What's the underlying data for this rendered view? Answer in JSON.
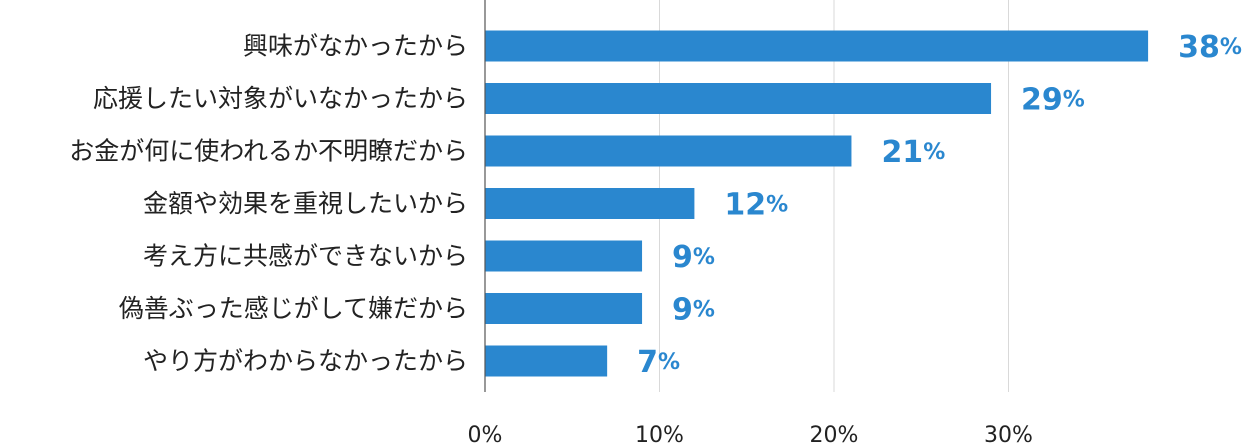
{
  "chart_data": {
    "type": "bar",
    "orientation": "horizontal",
    "categories": [
      "興味がなかったから",
      "応援したい対象がいなかったから",
      "お金が何に使われるか不明瞭だから",
      "金額や効果を重視したいから",
      "考え方に共感ができないから",
      "偽善ぶった感じがして嫌だから",
      "やり方がわからなかったから"
    ],
    "values": [
      38,
      29,
      21,
      12,
      9,
      9,
      7
    ],
    "value_labels": [
      "38",
      "29",
      "21",
      "12",
      "9",
      "9",
      "7"
    ],
    "value_unit": "%",
    "x_ticks": [
      "0%",
      "10%",
      "20%",
      "30%"
    ],
    "x_tick_values": [
      0,
      10,
      20,
      30
    ],
    "xlim": [
      0,
      40
    ],
    "grid": true,
    "legend": "none",
    "colors": {
      "bar": "#2a87cf",
      "value_label": "#2a87cf",
      "grid": "#d9d9d9",
      "axis": "#555555"
    }
  }
}
